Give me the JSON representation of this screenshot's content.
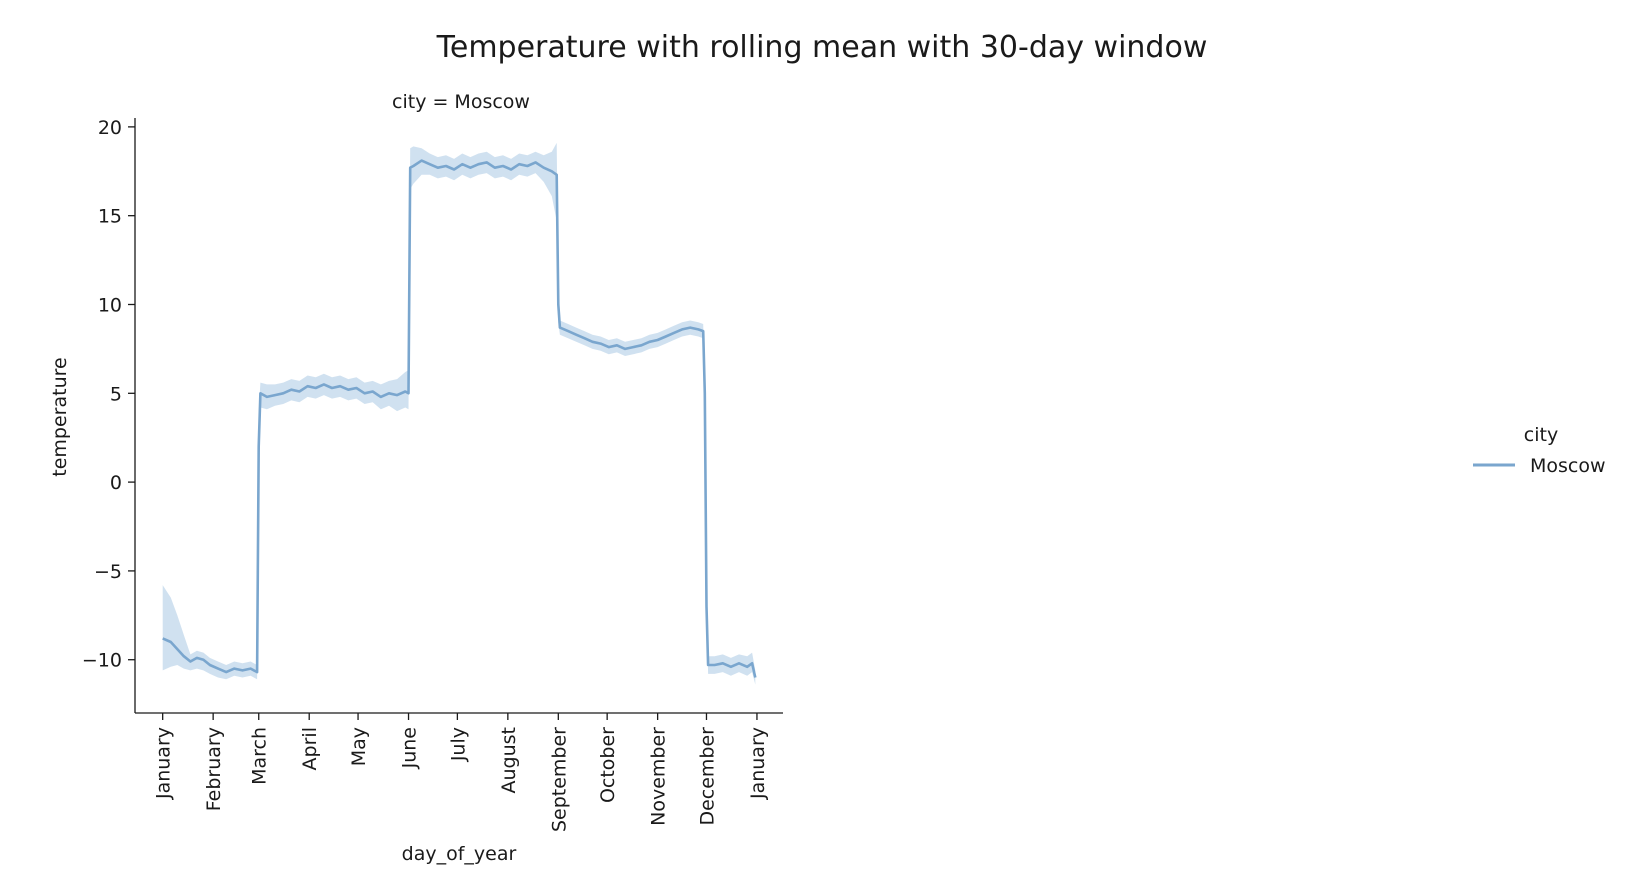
{
  "chart_data": {
    "type": "line",
    "title": "Temperature with rolling mean with 30-day window",
    "facet_title": "city = Moscow",
    "xlabel": "day_of_year",
    "ylabel": "temperature",
    "ylim": [
      -13,
      20.5
    ],
    "xlim": [
      -16,
      382
    ],
    "yticks": [
      -10,
      -5,
      0,
      5,
      10,
      15,
      20
    ],
    "xtick_labels": [
      "January",
      "February",
      "March",
      "April",
      "May",
      "June",
      "July",
      "August",
      "September",
      "October",
      "November",
      "December",
      "January"
    ],
    "xtick_days": [
      1,
      32,
      60,
      91,
      121,
      152,
      182,
      213,
      244,
      274,
      305,
      335,
      366
    ],
    "grid": false,
    "legend": {
      "title": "city",
      "position": "right",
      "entries": [
        "Moscow"
      ]
    },
    "series": [
      {
        "name": "Moscow",
        "color": "#7aa6ce",
        "band_color": "#a9c8e4",
        "x": [
          1,
          6,
          10,
          14,
          18,
          22,
          26,
          30,
          35,
          40,
          45,
          50,
          55,
          59,
          60,
          61,
          65,
          70,
          75,
          80,
          85,
          90,
          95,
          100,
          105,
          110,
          115,
          120,
          125,
          130,
          135,
          140,
          145,
          150,
          152,
          153,
          155,
          160,
          165,
          170,
          175,
          180,
          185,
          190,
          195,
          200,
          205,
          210,
          215,
          220,
          225,
          230,
          235,
          240,
          243,
          244,
          245,
          250,
          255,
          260,
          265,
          270,
          275,
          280,
          285,
          290,
          295,
          300,
          305,
          310,
          315,
          320,
          325,
          330,
          333,
          334,
          335,
          336,
          340,
          345,
          350,
          355,
          360,
          363,
          365
        ],
        "y": [
          -8.8,
          -9.0,
          -9.4,
          -9.8,
          -10.1,
          -9.9,
          -10.0,
          -10.3,
          -10.5,
          -10.7,
          -10.5,
          -10.6,
          -10.5,
          -10.7,
          2.0,
          5.0,
          4.8,
          4.9,
          5.0,
          5.2,
          5.1,
          5.4,
          5.3,
          5.5,
          5.3,
          5.4,
          5.2,
          5.3,
          5.0,
          5.1,
          4.8,
          5.0,
          4.9,
          5.1,
          5.0,
          17.7,
          17.8,
          18.1,
          17.9,
          17.7,
          17.8,
          17.6,
          17.9,
          17.7,
          17.9,
          18.0,
          17.7,
          17.8,
          17.6,
          17.9,
          17.8,
          18.0,
          17.7,
          17.5,
          17.3,
          10.0,
          8.7,
          8.5,
          8.3,
          8.1,
          7.9,
          7.8,
          7.6,
          7.7,
          7.5,
          7.6,
          7.7,
          7.9,
          8.0,
          8.2,
          8.4,
          8.6,
          8.7,
          8.6,
          8.5,
          5.0,
          -7.0,
          -10.3,
          -10.3,
          -10.2,
          -10.4,
          -10.2,
          -10.4,
          -10.2,
          -11.0
        ],
        "upper": [
          -5.8,
          -6.5,
          -7.5,
          -8.6,
          -9.7,
          -9.5,
          -9.6,
          -9.9,
          -10.1,
          -10.3,
          -10.1,
          -10.2,
          -10.1,
          -10.3,
          4.0,
          5.6,
          5.5,
          5.5,
          5.6,
          5.8,
          5.7,
          6.0,
          5.9,
          6.1,
          5.9,
          6.0,
          5.8,
          5.9,
          5.6,
          5.7,
          5.5,
          5.7,
          5.8,
          6.2,
          6.3,
          18.8,
          18.9,
          18.8,
          18.5,
          18.3,
          18.4,
          18.2,
          18.5,
          18.3,
          18.5,
          18.6,
          18.3,
          18.4,
          18.2,
          18.5,
          18.4,
          18.6,
          18.4,
          18.6,
          19.1,
          11.0,
          9.1,
          8.9,
          8.7,
          8.5,
          8.3,
          8.2,
          8.0,
          8.1,
          7.9,
          8.0,
          8.1,
          8.3,
          8.4,
          8.6,
          8.8,
          9.0,
          9.1,
          9.0,
          8.9,
          5.5,
          -6.5,
          -9.8,
          -9.8,
          -9.7,
          -9.9,
          -9.7,
          -9.8,
          -9.6,
          -10.6
        ],
        "lower": [
          -10.6,
          -10.4,
          -10.3,
          -10.5,
          -10.6,
          -10.5,
          -10.6,
          -10.8,
          -11.0,
          -11.1,
          -10.9,
          -11.0,
          -10.9,
          -11.1,
          0.0,
          4.2,
          4.1,
          4.3,
          4.4,
          4.6,
          4.5,
          4.8,
          4.7,
          4.9,
          4.7,
          4.8,
          4.6,
          4.7,
          4.4,
          4.5,
          4.1,
          4.3,
          4.0,
          4.2,
          4.1,
          16.5,
          16.8,
          17.3,
          17.3,
          17.1,
          17.2,
          17.0,
          17.3,
          17.1,
          17.3,
          17.4,
          17.1,
          17.2,
          17.0,
          17.3,
          17.2,
          17.4,
          16.9,
          16.1,
          14.7,
          9.0,
          8.3,
          8.1,
          7.9,
          7.7,
          7.5,
          7.4,
          7.2,
          7.3,
          7.1,
          7.2,
          7.3,
          7.5,
          7.6,
          7.8,
          8.0,
          8.2,
          8.3,
          8.2,
          8.1,
          4.5,
          -7.5,
          -10.8,
          -10.8,
          -10.7,
          -10.9,
          -10.7,
          -10.9,
          -10.7,
          -11.4
        ]
      }
    ]
  }
}
